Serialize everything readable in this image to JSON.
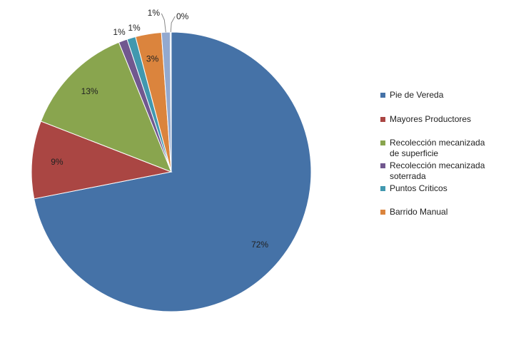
{
  "chart_data": {
    "type": "pie",
    "categories": [
      "Pie de Vereda",
      "Mayores Productores",
      "Recolección mecanizada de superficie",
      "Recolección mecanizada soterrada",
      "Puntos Criticos",
      "Barrido Manual",
      "",
      ""
    ],
    "values": [
      72,
      9,
      13,
      1,
      1,
      3,
      1,
      0
    ],
    "value_labels": [
      "72%",
      "9%",
      "13%",
      "1%",
      "1%",
      "3%",
      "1%",
      "0%"
    ],
    "colors": [
      "#4572A7",
      "#AA4643",
      "#89A54E",
      "#71588F",
      "#4198AF",
      "#DB843D",
      "#93A9CF",
      "#B9CDE5"
    ],
    "legend": {
      "position": "right",
      "entries": [
        {
          "label": "Pie de Vereda",
          "color": "#4572A7"
        },
        {
          "label": "Mayores Productores",
          "color": "#AA4643"
        },
        {
          "label": "Recolección mecanizada\nde superficie",
          "color": "#89A54E"
        },
        {
          "label": "Recolección mecanizada\nsoterrada",
          "color": "#71588F"
        },
        {
          "label": "Puntos Criticos",
          "color": "#4198AF"
        },
        {
          "label": "Barrido Manual",
          "color": "#DB843D"
        }
      ]
    }
  }
}
